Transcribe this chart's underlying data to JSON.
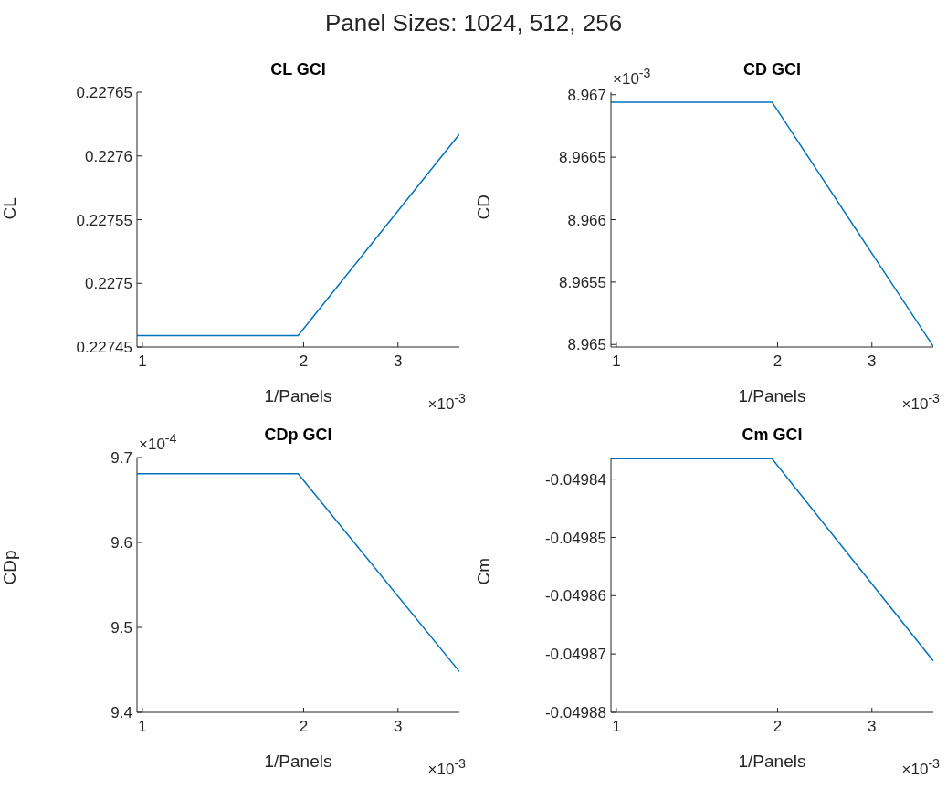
{
  "chart_data": [
    {
      "type": "other",
      "title": "Panel Sizes: 1024, 512, 256"
    },
    {
      "type": "line",
      "title": "CL GCI",
      "xlabel": "1/Panels",
      "ylabel": "CL",
      "log": "x",
      "grid": false,
      "color": "#0072bd",
      "x": [
        0.977,
        1.953,
        3.906
      ],
      "values": [
        0.227459,
        0.227459,
        0.227617
      ],
      "xlim": [
        0.977,
        3.906
      ],
      "xticks": [
        1,
        2,
        3
      ],
      "ylim": [
        0.22745,
        0.22765
      ],
      "yticks": [
        0.22745,
        0.2275,
        0.22755,
        0.2276,
        0.22765
      ],
      "annotations": [
        "×10$^{-3}$"
      ]
    },
    {
      "type": "line",
      "title": "CD GCI",
      "xlabel": "1/Panels",
      "ylabel": "CD",
      "log": "x",
      "grid": false,
      "color": "#0072bd",
      "x": [
        0.977,
        1.953,
        3.906
      ],
      "values": [
        8.96694,
        8.96694,
        8.964985
      ],
      "xlim": [
        0.977,
        3.906
      ],
      "xticks": [
        1,
        2,
        3
      ],
      "ylim": [
        8.96498,
        8.96702
      ],
      "yticks": [
        8.965,
        8.9655,
        8.966,
        8.9665,
        8.967
      ],
      "annotations": [
        "×10$^{-3}$",
        "×10$^{-3}$"
      ]
    },
    {
      "type": "line",
      "title": "CDp GCI",
      "xlabel": "1/Panels",
      "ylabel": "CDp",
      "log": "x",
      "grid": false,
      "color": "#0072bd",
      "x": [
        0.977,
        1.953,
        3.906
      ],
      "values": [
        9.681,
        9.681,
        9.448
      ],
      "xlim": [
        0.977,
        3.906
      ],
      "xticks": [
        1,
        2,
        3
      ],
      "ylim": [
        9.4,
        9.7
      ],
      "yticks": [
        9.4,
        9.5,
        9.6,
        9.7
      ],
      "annotations": [
        "×10$^{-3}$",
        "×10$^{-4}$"
      ]
    },
    {
      "type": "line",
      "title": "Cm GCI",
      "xlabel": "1/Panels",
      "ylabel": "Cm",
      "log": "x",
      "grid": false,
      "color": "#0072bd",
      "x": [
        0.977,
        1.953,
        3.906
      ],
      "values": [
        -0.0498365,
        -0.0498365,
        -0.0498712
      ],
      "xlim": [
        0.977,
        3.906
      ],
      "xticks": [
        1,
        2,
        3
      ],
      "ylim": [
        -0.04988,
        -0.0498363
      ],
      "yticks": [
        -0.04988,
        -0.04987,
        -0.04986,
        -0.04985,
        -0.04984
      ],
      "annotations": [
        "×10$^{-3}$"
      ]
    }
  ]
}
